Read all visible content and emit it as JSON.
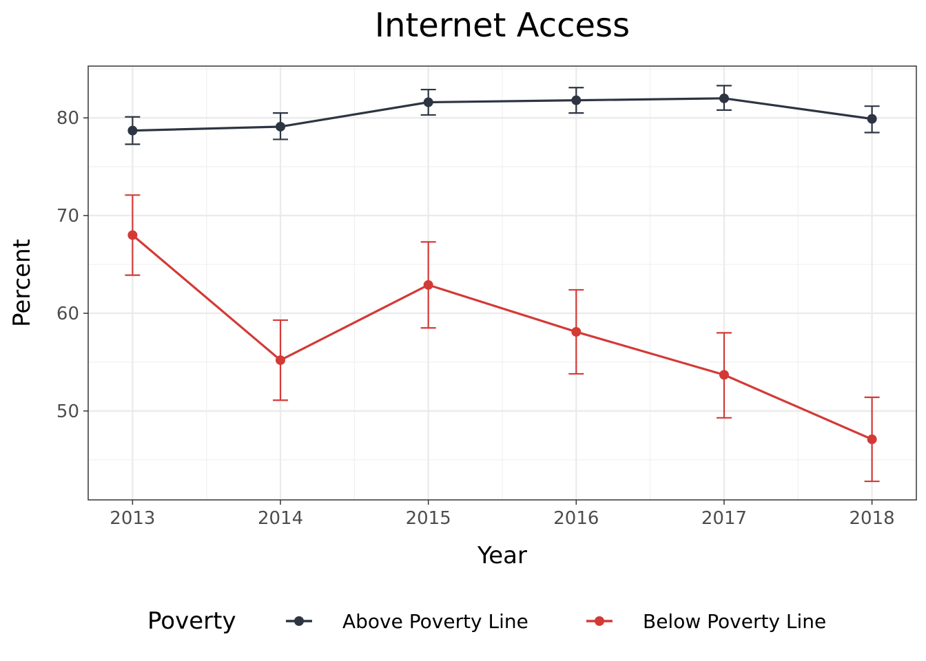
{
  "chart_data": {
    "type": "line",
    "title": "Internet Access",
    "xlabel": "Year",
    "ylabel": "Percent",
    "x": [
      2013,
      2014,
      2015,
      2016,
      2017,
      2018
    ],
    "xlim": [
      2012.7,
      2018.3
    ],
    "ylim": [
      40.9,
      85.3
    ],
    "yticks": [
      50,
      60,
      70,
      80
    ],
    "grid": true,
    "legend": {
      "title": "Poverty",
      "position": "bottom"
    },
    "series": [
      {
        "name": "Above Poverty Line",
        "color": "#2d3542",
        "values": [
          78.7,
          79.1,
          81.6,
          81.8,
          82.0,
          79.9
        ],
        "lower": [
          77.3,
          77.8,
          80.3,
          80.5,
          80.8,
          78.5
        ],
        "upper": [
          80.1,
          80.5,
          82.9,
          83.1,
          83.3,
          81.2
        ]
      },
      {
        "name": "Below Poverty Line",
        "color": "#d33a36",
        "values": [
          68.0,
          55.2,
          62.9,
          58.1,
          53.7,
          47.1
        ],
        "lower": [
          63.9,
          51.1,
          58.5,
          53.8,
          49.3,
          42.8
        ],
        "upper": [
          72.1,
          59.3,
          67.3,
          62.4,
          58.0,
          51.4
        ]
      }
    ]
  }
}
